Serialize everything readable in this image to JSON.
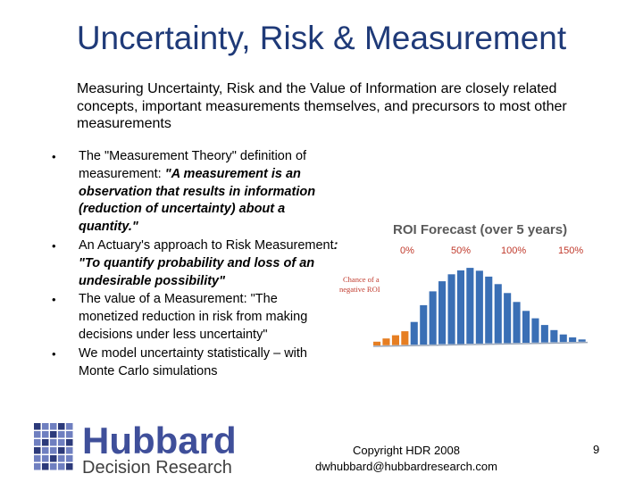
{
  "slide": {
    "title": "Uncertainty, Risk & Measurement",
    "intro": "Measuring Uncertainty, Risk and the Value of Information are closely related concepts, important measurements themselves, and precursors to most other measurements",
    "bullets": [
      {
        "plain": "The \"Measurement Theory\" definition of measurement: ",
        "em": "\"A measurement is an observation that results in information (reduction of uncertainty) about a quantity.\""
      },
      {
        "plain": "An Actuary's approach to Risk Measurement",
        "em": ": \"To quantify probability and loss of an undesirable possibility\""
      },
      {
        "plain": "The value of a Measurement: \"The monetized reduction in risk from making decisions under less uncertainty\"",
        "em": ""
      },
      {
        "plain": "We model uncertainty statistically – with Monte Carlo simulations",
        "em": ""
      }
    ],
    "bullet_glyph": "•",
    "footer": {
      "copyright": "Copyright HDR 2008",
      "email": "dwhubbard@hubbardresearch.com",
      "page_number": "9"
    }
  },
  "figure": {
    "title": "ROI Forecast (over 5 years)",
    "axis_labels": [
      "0%",
      "50%",
      "100%",
      "150%"
    ],
    "annotation": [
      "Chance of a",
      "negative ROI"
    ],
    "bars": [
      0.05,
      0.09,
      0.13,
      0.18,
      0.3,
      0.52,
      0.7,
      0.83,
      0.92,
      0.97,
      1.0,
      0.96,
      0.88,
      0.78,
      0.66,
      0.54,
      0.42,
      0.32,
      0.23,
      0.16,
      0.1,
      0.06,
      0.03
    ],
    "negative_bar_count": 4,
    "colors": {
      "title": "#5a5a5a",
      "axis": "#c0392b",
      "bar": "#3a6fb5",
      "negative": "#e67e22",
      "annotation": "#c0392b"
    }
  },
  "logo": {
    "name": "Hubbard",
    "subtitle": "Decision Research",
    "colors": {
      "main": "#3f4f9a",
      "sub": "#404040"
    }
  }
}
